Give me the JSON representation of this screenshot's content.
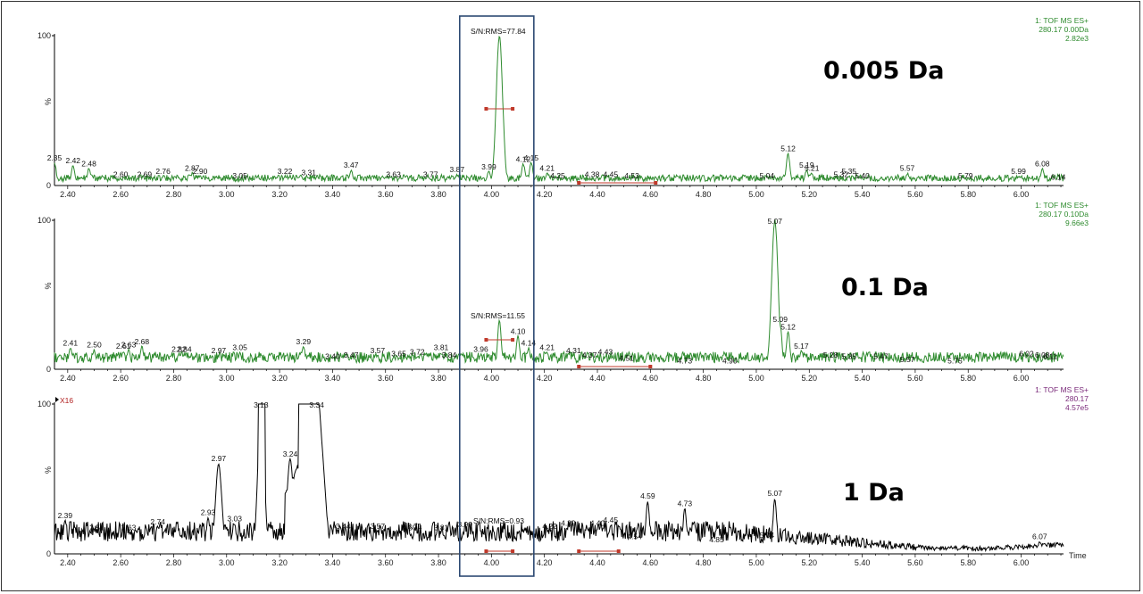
{
  "chart_data": [
    {
      "type": "line",
      "big_label": "0.005 Da",
      "header": [
        "1: TOF MS ES+",
        "280.17 0.00Da",
        "2.82e3"
      ],
      "color": "#2e8b2e",
      "xlim": [
        2.35,
        6.16
      ],
      "ylim": [
        0,
        100
      ],
      "y_ticks": [
        "100",
        "%",
        "0"
      ],
      "x_ticks": [
        "2.40",
        "2.60",
        "2.80",
        "3.00",
        "3.20",
        "3.40",
        "3.60",
        "3.80",
        "4.00",
        "4.20",
        "4.40",
        "4.60",
        "4.80",
        "5.00",
        "5.20",
        "5.40",
        "5.60",
        "5.80",
        "6.00"
      ],
      "annotation": "S/N:RMS=77.84",
      "baseline": 5,
      "peaks": [
        {
          "x": 2.35,
          "y": 15,
          "label": "2.35"
        },
        {
          "x": 2.42,
          "y": 13,
          "label": "2.42"
        },
        {
          "x": 2.48,
          "y": 11,
          "label": "2.48"
        },
        {
          "x": 2.6,
          "y": 4,
          "label": "2.60"
        },
        {
          "x": 2.69,
          "y": 4,
          "label": "2.69"
        },
        {
          "x": 2.76,
          "y": 6,
          "label": "2.76"
        },
        {
          "x": 2.87,
          "y": 8,
          "label": "2.87"
        },
        {
          "x": 2.9,
          "y": 6,
          "label": "2.90"
        },
        {
          "x": 3.05,
          "y": 3,
          "label": "3.05"
        },
        {
          "x": 3.22,
          "y": 6,
          "label": "3.22"
        },
        {
          "x": 3.31,
          "y": 5,
          "label": "3.31"
        },
        {
          "x": 3.47,
          "y": 10,
          "label": "3.47"
        },
        {
          "x": 3.63,
          "y": 4,
          "label": "3.63"
        },
        {
          "x": 3.77,
          "y": 4,
          "label": "3.77"
        },
        {
          "x": 3.87,
          "y": 7,
          "label": "3.87"
        },
        {
          "x": 3.99,
          "y": 9,
          "label": "3.99"
        },
        {
          "x": 4.03,
          "y": 100,
          "label": ""
        },
        {
          "x": 4.12,
          "y": 14,
          "label": "4.12"
        },
        {
          "x": 4.15,
          "y": 15,
          "label": "4.15"
        },
        {
          "x": 4.21,
          "y": 8,
          "label": "4.21"
        },
        {
          "x": 4.25,
          "y": 3,
          "label": "4.25"
        },
        {
          "x": 4.38,
          "y": 4,
          "label": "4.38"
        },
        {
          "x": 4.45,
          "y": 4,
          "label": "4.45"
        },
        {
          "x": 4.53,
          "y": 3,
          "label": "4.53"
        },
        {
          "x": 5.04,
          "y": 3,
          "label": "5.04"
        },
        {
          "x": 5.12,
          "y": 21,
          "label": "5.12"
        },
        {
          "x": 5.19,
          "y": 10,
          "label": "5.19"
        },
        {
          "x": 5.21,
          "y": 8,
          "label": "5.21"
        },
        {
          "x": 5.32,
          "y": 4,
          "label": "5.32"
        },
        {
          "x": 5.35,
          "y": 6,
          "label": "5.35"
        },
        {
          "x": 5.4,
          "y": 3,
          "label": "5.40"
        },
        {
          "x": 5.57,
          "y": 8,
          "label": "5.57"
        },
        {
          "x": 5.79,
          "y": 3,
          "label": "5.79"
        },
        {
          "x": 5.99,
          "y": 6,
          "label": "5.99"
        },
        {
          "x": 6.08,
          "y": 11,
          "label": "6.08"
        },
        {
          "x": 6.14,
          "y": 2,
          "label": "6.14"
        }
      ],
      "integration_ranges": [
        [
          3.98,
          4.08
        ],
        [
          4.33,
          4.62
        ]
      ]
    },
    {
      "type": "line",
      "big_label": "0.1 Da",
      "header": [
        "1: TOF MS ES+",
        "280.17 0.10Da",
        "9.66e3"
      ],
      "color": "#2e8b2e",
      "xlim": [
        2.35,
        6.16
      ],
      "ylim": [
        0,
        100
      ],
      "y_ticks": [
        "100",
        "%",
        "0"
      ],
      "x_ticks": [
        "2.40",
        "2.60",
        "2.80",
        "3.00",
        "3.20",
        "3.40",
        "3.60",
        "3.80",
        "4.00",
        "4.20",
        "4.40",
        "4.60",
        "4.80",
        "5.00",
        "5.20",
        "5.40",
        "5.60",
        "5.80",
        "6.00"
      ],
      "annotation": "S/N:RMS=11.55",
      "baseline": 8,
      "peaks": [
        {
          "x": 2.41,
          "y": 14,
          "label": "2.41"
        },
        {
          "x": 2.5,
          "y": 13,
          "label": "2.50"
        },
        {
          "x": 2.61,
          "y": 12,
          "label": "2.61"
        },
        {
          "x": 2.63,
          "y": 13,
          "label": "2.63"
        },
        {
          "x": 2.68,
          "y": 15,
          "label": "2.68"
        },
        {
          "x": 2.82,
          "y": 10,
          "label": "2.82"
        },
        {
          "x": 2.84,
          "y": 10,
          "label": "2.84"
        },
        {
          "x": 2.97,
          "y": 9,
          "label": "2.97"
        },
        {
          "x": 3.05,
          "y": 11,
          "label": "3.05"
        },
        {
          "x": 3.29,
          "y": 15,
          "label": "3.29"
        },
        {
          "x": 3.4,
          "y": 5,
          "label": "3.40"
        },
        {
          "x": 3.47,
          "y": 6,
          "label": "3.47"
        },
        {
          "x": 3.57,
          "y": 9,
          "label": "3.57"
        },
        {
          "x": 3.65,
          "y": 7,
          "label": "3.65"
        },
        {
          "x": 3.72,
          "y": 8,
          "label": "3.72"
        },
        {
          "x": 3.81,
          "y": 11,
          "label": "3.81"
        },
        {
          "x": 3.84,
          "y": 6,
          "label": "3.84"
        },
        {
          "x": 3.96,
          "y": 10,
          "label": "3.96"
        },
        {
          "x": 4.03,
          "y": 33,
          "label": ""
        },
        {
          "x": 4.1,
          "y": 22,
          "label": "4.10"
        },
        {
          "x": 4.14,
          "y": 14,
          "label": "4.14"
        },
        {
          "x": 4.21,
          "y": 11,
          "label": "4.21"
        },
        {
          "x": 4.31,
          "y": 9,
          "label": "4.31"
        },
        {
          "x": 4.37,
          "y": 6,
          "label": "4.37"
        },
        {
          "x": 4.43,
          "y": 8,
          "label": "4.43"
        },
        {
          "x": 4.51,
          "y": 4,
          "label": "4.51"
        },
        {
          "x": 4.73,
          "y": 2,
          "label": "4.73"
        },
        {
          "x": 4.9,
          "y": 2,
          "label": "4.90"
        },
        {
          "x": 5.07,
          "y": 100,
          "label": "5.07"
        },
        {
          "x": 5.09,
          "y": 30,
          "label": "5.09"
        },
        {
          "x": 5.12,
          "y": 25,
          "label": "5.12"
        },
        {
          "x": 5.17,
          "y": 12,
          "label": "5.17"
        },
        {
          "x": 5.28,
          "y": 6,
          "label": "5.28"
        },
        {
          "x": 5.35,
          "y": 5,
          "label": "5.35"
        },
        {
          "x": 5.47,
          "y": 5,
          "label": "5.47"
        },
        {
          "x": 5.57,
          "y": 3,
          "label": "5.57"
        },
        {
          "x": 5.75,
          "y": 2,
          "label": "5.75"
        },
        {
          "x": 6.02,
          "y": 7,
          "label": "6.02"
        },
        {
          "x": 6.08,
          "y": 6,
          "label": "6.08"
        },
        {
          "x": 6.11,
          "y": 5,
          "label": "6.11"
        }
      ],
      "integration_ranges": [
        [
          3.98,
          4.08
        ],
        [
          4.33,
          4.6
        ]
      ]
    },
    {
      "type": "line",
      "big_label": "1 Da",
      "header": [
        "1: TOF MS ES+",
        "280.17",
        "4.57e5"
      ],
      "header_color": "#7a2a7a",
      "color": "#000000",
      "scale_marker": "X16",
      "xlim": [
        2.35,
        6.16
      ],
      "ylim": [
        0,
        100
      ],
      "y_ticks": [
        "100",
        "%",
        "0"
      ],
      "x_ticks": [
        "2.40",
        "2.60",
        "2.80",
        "3.00",
        "3.20",
        "3.40",
        "3.60",
        "3.80",
        "4.00",
        "4.20",
        "4.40",
        "4.60",
        "4.80",
        "5.00",
        "5.20",
        "5.40",
        "5.60",
        "5.80",
        "6.00"
      ],
      "x_axis_label": "Time",
      "annotation": "S/N:RMS=0.93",
      "baseline": 15,
      "peaks": [
        {
          "x": 2.39,
          "y": 22,
          "label": "2.39"
        },
        {
          "x": 2.51,
          "y": 14,
          "label": "2.51"
        },
        {
          "x": 2.63,
          "y": 14,
          "label": "2.63"
        },
        {
          "x": 2.74,
          "y": 18,
          "label": "2.74"
        },
        {
          "x": 2.93,
          "y": 24,
          "label": "2.93"
        },
        {
          "x": 2.97,
          "y": 60,
          "label": "2.97"
        },
        {
          "x": 3.03,
          "y": 20,
          "label": "3.03"
        },
        {
          "x": 3.13,
          "y": 100,
          "label": "3.13"
        },
        {
          "x": 3.24,
          "y": 63,
          "label": "3.24"
        },
        {
          "x": 3.34,
          "y": 100,
          "label": "3.34"
        },
        {
          "x": 3.44,
          "y": 15,
          "label": "3.44"
        },
        {
          "x": 3.57,
          "y": 15,
          "label": "3.57"
        },
        {
          "x": 3.69,
          "y": 14,
          "label": "3.69"
        },
        {
          "x": 3.71,
          "y": 15,
          "label": "3.71"
        },
        {
          "x": 3.81,
          "y": 14,
          "label": "3.81"
        },
        {
          "x": 3.9,
          "y": 16,
          "label": "3.90"
        },
        {
          "x": 4.22,
          "y": 15,
          "label": "4.22"
        },
        {
          "x": 4.29,
          "y": 17,
          "label": "4.29"
        },
        {
          "x": 4.4,
          "y": 17,
          "label": "4.40"
        },
        {
          "x": 4.45,
          "y": 19,
          "label": "4.45"
        },
        {
          "x": 4.54,
          "y": 8,
          "label": "4.54"
        },
        {
          "x": 4.59,
          "y": 35,
          "label": "4.59"
        },
        {
          "x": 4.73,
          "y": 30,
          "label": "4.73"
        },
        {
          "x": 4.85,
          "y": 6,
          "label": "4.85"
        },
        {
          "x": 5.04,
          "y": 9,
          "label": "5.04"
        },
        {
          "x": 5.07,
          "y": 37,
          "label": "5.07"
        },
        {
          "x": 6.07,
          "y": 8,
          "label": "6.07"
        }
      ],
      "integration_ranges": [
        [
          3.98,
          4.08
        ],
        [
          4.33,
          4.48
        ]
      ]
    }
  ],
  "highlight": {
    "x_range": [
      3.88,
      4.16
    ],
    "color": "#2d4a73"
  }
}
